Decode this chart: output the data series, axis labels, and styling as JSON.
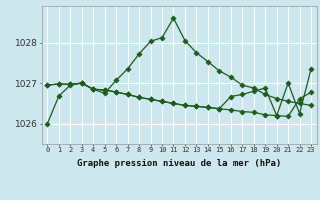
{
  "title": "Graphe pression niveau de la mer (hPa)",
  "x_ticks": [
    0,
    1,
    2,
    3,
    4,
    5,
    6,
    7,
    8,
    9,
    10,
    11,
    12,
    13,
    14,
    15,
    16,
    17,
    18,
    19,
    20,
    21,
    22,
    23
  ],
  "ylim": [
    1025.5,
    1028.9
  ],
  "yticks": [
    1026,
    1027,
    1028
  ],
  "bg_color": "#cce8ee",
  "grid_color": "#ffffff",
  "line_color": "#1e5c1e",
  "line1_y": [
    1026.0,
    1026.68,
    1026.95,
    1027.0,
    1026.85,
    1026.75,
    1027.07,
    1027.35,
    1027.72,
    1028.03,
    1028.12,
    1028.6,
    1028.05,
    1027.75,
    1027.53,
    1027.3,
    1027.15,
    1026.95,
    1026.88,
    1026.72,
    1026.62,
    1026.55,
    1026.5,
    1026.45
  ],
  "line2_y": [
    1026.95,
    1026.98,
    1026.97,
    1027.0,
    1026.85,
    1026.83,
    1026.78,
    1026.72,
    1026.65,
    1026.6,
    1026.55,
    1026.5,
    1026.45,
    1026.43,
    1026.4,
    1026.37,
    1026.34,
    1026.3,
    1026.28,
    1026.22,
    1026.2,
    1026.18,
    1026.62,
    1026.77
  ],
  "line3_y": [
    1026.95,
    1026.98,
    1026.97,
    1027.0,
    1026.85,
    1026.83,
    1026.78,
    1026.72,
    1026.65,
    1026.6,
    1026.55,
    1026.5,
    1026.45,
    1026.43,
    1026.4,
    1026.37,
    1026.67,
    1026.72,
    1026.8,
    1026.88,
    1026.2,
    1027.0,
    1026.25,
    1027.35
  ]
}
